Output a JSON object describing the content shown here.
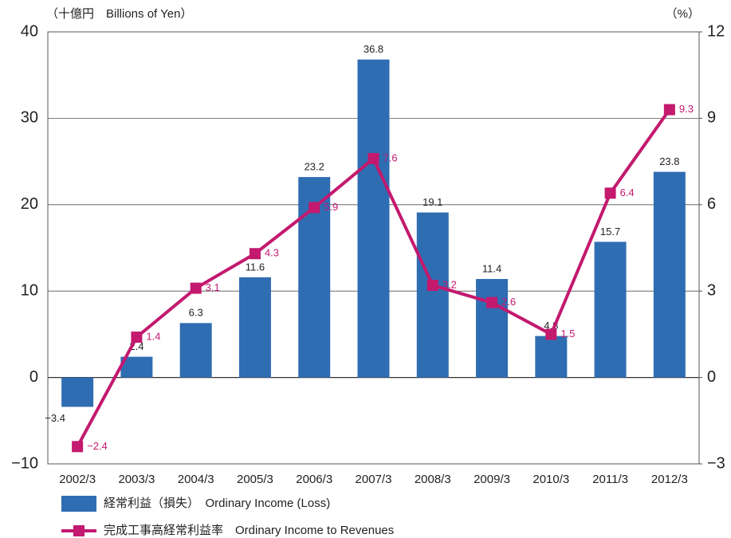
{
  "chart_data": {
    "type": "bar",
    "y_axis_label": "（十億円　Billions of Yen）",
    "y2_axis_label": "（%）",
    "categories": [
      "2002/3",
      "2003/3",
      "2004/3",
      "2005/3",
      "2006/3",
      "2007/3",
      "2008/3",
      "2009/3",
      "2010/3",
      "2011/3",
      "2012/3"
    ],
    "series": [
      {
        "name": "経常利益（損失）　Ordinary Income (Loss)",
        "type": "bar",
        "color": "#2f6db3",
        "values": [
          -3.4,
          2.4,
          6.3,
          11.6,
          23.2,
          36.8,
          19.1,
          11.4,
          4.8,
          15.7,
          23.8
        ],
        "value_labels": [
          "−3.4",
          "2.4",
          "6.3",
          "11.6",
          "23.2",
          "36.8",
          "19.1",
          "11.4",
          "4.8",
          "15.7",
          "23.8"
        ]
      },
      {
        "name": "完成工事高経常利益率　Ordinary Income to Revenues",
        "type": "line",
        "axis": "y2",
        "color": "#c3196f",
        "values": [
          -2.4,
          1.4,
          3.1,
          4.3,
          5.9,
          7.6,
          3.2,
          2.6,
          1.5,
          6.4,
          9.3
        ],
        "value_labels": [
          "−2.4",
          "1.4",
          "3.1",
          "4.3",
          "5.9",
          "7.6",
          "3.2",
          "2.6",
          "1.5",
          "6.4",
          "9.3"
        ]
      }
    ],
    "ylim": [
      -10,
      40
    ],
    "yticks": [
      {
        "value": -10,
        "label": "−10"
      },
      0,
      10,
      20,
      30,
      40
    ],
    "y2lim": [
      -3,
      12
    ],
    "y2ticks": [
      {
        "value": -3,
        "label": "−3"
      },
      0,
      3,
      6,
      9,
      12
    ],
    "grid": true,
    "legend": "bottom"
  }
}
